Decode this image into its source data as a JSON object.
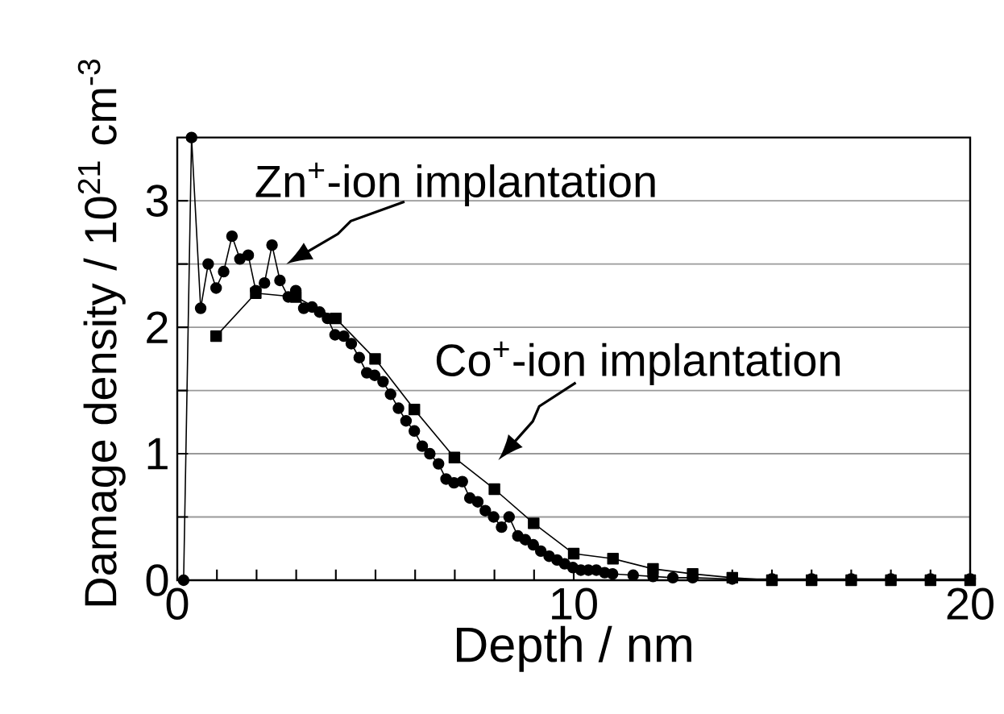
{
  "chart_data": {
    "type": "line",
    "xlabel": "Depth / nm",
    "ylabel": "Damage density / 10$^{21}$ cm$^{-3}$",
    "xlim": [
      0,
      20
    ],
    "ylim": [
      0,
      3.5
    ],
    "xticks": [
      0,
      {
        "value": 1,
        "label": null
      },
      {
        "value": 2,
        "label": null
      },
      {
        "value": 3,
        "label": null
      },
      {
        "value": 4,
        "label": null
      },
      {
        "value": 5,
        "label": null
      },
      {
        "value": 6,
        "label": null
      },
      {
        "value": 7,
        "label": null
      },
      {
        "value": 8,
        "label": null
      },
      {
        "value": 9,
        "label": null
      },
      10,
      {
        "value": 11,
        "label": null
      },
      {
        "value": 12,
        "label": null
      },
      {
        "value": 13,
        "label": null
      },
      {
        "value": 14,
        "label": null
      },
      {
        "value": 15,
        "label": null
      },
      {
        "value": 16,
        "label": null
      },
      {
        "value": 17,
        "label": null
      },
      {
        "value": 18,
        "label": null
      },
      {
        "value": 19,
        "label": null
      },
      20
    ],
    "yticks": [
      0,
      {
        "value": 0.5,
        "label": null
      },
      1,
      {
        "value": 1.5,
        "label": null
      },
      2,
      {
        "value": 2.5,
        "label": null
      },
      3
    ],
    "grid": "y",
    "series": [
      {
        "color": "#000000",
        "marker": "circle",
        "x": [
          0.16,
          0.36,
          0.59,
          0.78,
          0.98,
          1.17,
          1.38,
          1.58,
          1.79,
          1.98,
          2.2,
          2.39,
          2.59,
          2.8,
          2.99,
          3.19,
          3.4,
          3.59,
          3.79,
          3.98,
          4.2,
          4.39,
          4.59,
          4.78,
          4.98,
          5.19,
          5.38,
          5.58,
          5.77,
          5.98,
          6.18,
          6.37,
          6.59,
          6.78,
          6.98,
          7.19,
          7.38,
          7.58,
          7.77,
          7.98,
          8.18,
          8.37,
          8.59,
          8.78,
          8.98,
          9.17,
          9.38,
          9.58,
          9.77,
          9.98,
          10.18,
          10.37,
          10.57,
          10.78,
          10.98,
          11.5,
          12,
          12.5,
          13,
          14,
          15,
          16,
          17,
          18,
          19,
          20
        ],
        "values": [
          0,
          3.5,
          2.15,
          2.5,
          2.31,
          2.44,
          2.72,
          2.54,
          2.57,
          2.29,
          2.35,
          2.65,
          2.37,
          2.24,
          2.29,
          2.15,
          2.16,
          2.12,
          2.07,
          1.94,
          1.93,
          1.87,
          1.76,
          1.64,
          1.62,
          1.57,
          1.47,
          1.36,
          1.26,
          1.18,
          1.06,
          1.0,
          0.92,
          0.8,
          0.77,
          0.78,
          0.65,
          0.62,
          0.55,
          0.5,
          0.42,
          0.5,
          0.35,
          0.32,
          0.28,
          0.23,
          0.19,
          0.16,
          0.13,
          0.1,
          0.08,
          0.08,
          0.08,
          0.06,
          0.05,
          0.04,
          0.03,
          0.02,
          0.02,
          0.01,
          0.01,
          0.01,
          0.01,
          0.01,
          0.01,
          0.01
        ]
      },
      {
        "color": "#000000",
        "marker": "square",
        "x": [
          0.98,
          1.98,
          2.99,
          4.0,
          4.99,
          5.98,
          6.99,
          8.0,
          8.99,
          10.0,
          10.99,
          12.0,
          13.0,
          14.0,
          15.0,
          16.0,
          17.0,
          18.0,
          19.0,
          20.0
        ],
        "values": [
          1.93,
          2.27,
          2.24,
          2.07,
          1.75,
          1.35,
          0.97,
          0.72,
          0.45,
          0.21,
          0.17,
          0.09,
          0.05,
          0.02,
          0.0,
          0.0,
          0.0,
          0.0,
          0.0,
          0.0
        ]
      }
    ],
    "annotations": [
      "Zn$^{+}$-ion implantation",
      "Co$^{+}$-ion implantation"
    ]
  }
}
